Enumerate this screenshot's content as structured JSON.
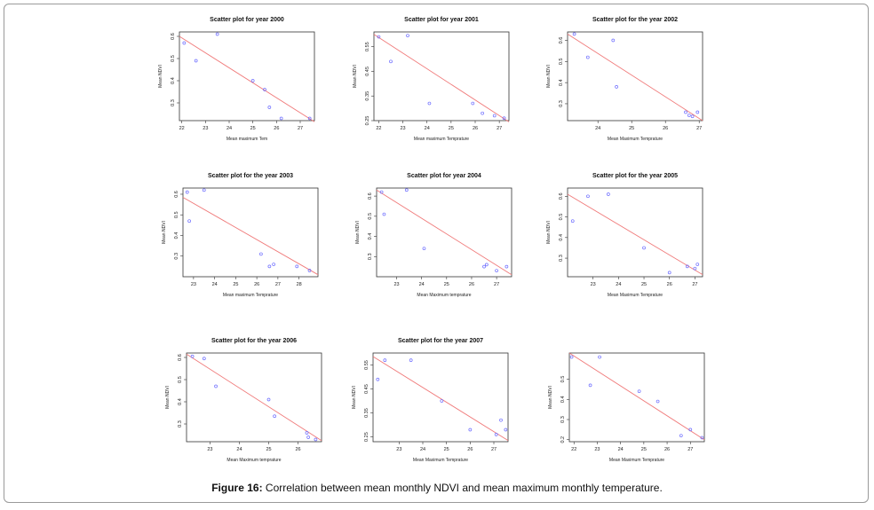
{
  "caption": {
    "label": "Figure 16:",
    "text": " Correlation between mean monthly NDVI and mean maximum monthly temperature."
  },
  "colors": {
    "points": "#6b6bff",
    "fit_line": "#f07a7a",
    "axes": "#333333"
  },
  "chart_data": [
    {
      "type": "scatter",
      "title": "Scatter plot for year 2000",
      "xlabel": "Mean maximum Tem",
      "ylabel": "Mean NDVI",
      "xlim": [
        21.9,
        27.6
      ],
      "ylim": [
        0.22,
        0.62
      ],
      "xticks": [
        22,
        23,
        24,
        25,
        26,
        27
      ],
      "yticks": [
        0.3,
        0.4,
        0.5,
        0.6
      ],
      "x": [
        22.1,
        22.6,
        23.5,
        25.0,
        25.5,
        25.7,
        26.2,
        27.4
      ],
      "y": [
        0.57,
        0.49,
        0.61,
        0.4,
        0.36,
        0.28,
        0.23,
        0.23
      ],
      "fit": [
        [
          21.9,
          0.6
        ],
        [
          27.6,
          0.215
        ]
      ]
    },
    {
      "type": "scatter",
      "title": "Scatter plot for year 2001",
      "xlabel": "Mean maximum Temprature",
      "ylabel": "Mean NDVI",
      "xlim": [
        21.8,
        27.4
      ],
      "ylim": [
        0.25,
        0.61
      ],
      "xticks": [
        22,
        23,
        24,
        25,
        26,
        27
      ],
      "yticks": [
        0.25,
        0.35,
        0.45,
        0.55
      ],
      "x": [
        22.0,
        22.5,
        23.2,
        24.1,
        25.9,
        26.3,
        26.8,
        27.2
      ],
      "y": [
        0.59,
        0.49,
        0.595,
        0.32,
        0.32,
        0.28,
        0.27,
        0.26
      ],
      "fit": [
        [
          21.8,
          0.6
        ],
        [
          27.4,
          0.245
        ]
      ]
    },
    {
      "type": "scatter",
      "title": "Scatter plot for the year 2002",
      "xlabel": "Mean Maximum Temprature",
      "ylabel": "Mean NDVI",
      "xlim": [
        23.1,
        27.1
      ],
      "ylim": [
        0.22,
        0.64
      ],
      "xticks": [
        24,
        25,
        26,
        27
      ],
      "yticks": [
        0.3,
        0.4,
        0.5,
        0.6
      ],
      "x": [
        23.3,
        23.7,
        24.45,
        24.55,
        26.6,
        26.7,
        26.8,
        26.95
      ],
      "y": [
        0.63,
        0.52,
        0.6,
        0.38,
        0.26,
        0.245,
        0.24,
        0.26
      ],
      "fit": [
        [
          23.1,
          0.63
        ],
        [
          27.1,
          0.22
        ]
      ]
    },
    {
      "type": "scatter",
      "title": "Scatter plot for the year 2003",
      "xlabel": "Mean maximum Temprature",
      "ylabel": "Mean NDVI",
      "xlim": [
        22.5,
        28.9
      ],
      "ylim": [
        0.2,
        0.63
      ],
      "xticks": [
        23,
        24,
        25,
        26,
        27,
        28
      ],
      "yticks": [
        0.3,
        0.4,
        0.5,
        0.6
      ],
      "x": [
        22.7,
        22.8,
        23.5,
        26.2,
        26.6,
        26.8,
        27.9,
        28.5
      ],
      "y": [
        0.61,
        0.47,
        0.62,
        0.31,
        0.25,
        0.26,
        0.25,
        0.23
      ],
      "fit": [
        [
          22.5,
          0.585
        ],
        [
          28.9,
          0.21
        ]
      ]
    },
    {
      "type": "scatter",
      "title": "Scatter plot for year 2004",
      "xlabel": "Mean Maximum temprature",
      "ylabel": "Mean NDVI",
      "xlim": [
        22.2,
        27.6
      ],
      "ylim": [
        0.2,
        0.64
      ],
      "xticks": [
        23,
        24,
        25,
        26,
        27
      ],
      "yticks": [
        0.3,
        0.4,
        0.5,
        0.6
      ],
      "x": [
        22.4,
        22.5,
        23.4,
        24.1,
        26.5,
        26.6,
        27.0,
        27.4
      ],
      "y": [
        0.62,
        0.51,
        0.63,
        0.34,
        0.25,
        0.26,
        0.23,
        0.25
      ],
      "fit": [
        [
          22.2,
          0.63
        ],
        [
          27.6,
          0.21
        ]
      ]
    },
    {
      "type": "scatter",
      "title": "Scatter plot for the year 2005",
      "xlabel": "Mean Maximum Temprature",
      "ylabel": "Mean NDVI",
      "xlim": [
        22.0,
        27.3
      ],
      "ylim": [
        0.21,
        0.64
      ],
      "xticks": [
        23,
        24,
        25,
        26,
        27
      ],
      "yticks": [
        0.3,
        0.4,
        0.5,
        0.6
      ],
      "x": [
        22.2,
        22.8,
        23.6,
        25.0,
        26.0,
        26.7,
        27.0,
        27.1
      ],
      "y": [
        0.48,
        0.6,
        0.61,
        0.35,
        0.23,
        0.26,
        0.25,
        0.27
      ],
      "fit": [
        [
          22.0,
          0.61
        ],
        [
          27.3,
          0.22
        ]
      ]
    },
    {
      "type": "scatter",
      "title": "Scatter plot for the year 2006",
      "xlabel": "Mean Maximum temprature",
      "ylabel": "Mean NDVI",
      "xlim": [
        22.2,
        26.8
      ],
      "ylim": [
        0.22,
        0.62
      ],
      "xticks": [
        23,
        24,
        25,
        26
      ],
      "yticks": [
        0.3,
        0.4,
        0.5,
        0.6
      ],
      "x": [
        22.4,
        22.8,
        23.2,
        25.0,
        25.2,
        26.3,
        26.35,
        26.6
      ],
      "y": [
        0.605,
        0.595,
        0.47,
        0.41,
        0.335,
        0.26,
        0.24,
        0.23
      ],
      "fit": [
        [
          22.2,
          0.615
        ],
        [
          26.8,
          0.225
        ]
      ]
    },
    {
      "type": "scatter",
      "title": "Scatter plot for the year 2007",
      "xlabel": "Mean Maximum Temprature",
      "ylabel": "Mean NDVI",
      "xlim": [
        21.9,
        27.6
      ],
      "ylim": [
        0.23,
        0.6
      ],
      "xticks": [
        23,
        24,
        25,
        26,
        27
      ],
      "yticks": [
        0.25,
        0.35,
        0.45,
        0.55
      ],
      "x": [
        22.1,
        22.4,
        23.5,
        24.8,
        26.0,
        27.1,
        27.3,
        27.5
      ],
      "y": [
        0.49,
        0.57,
        0.57,
        0.4,
        0.28,
        0.26,
        0.32,
        0.28
      ],
      "fit": [
        [
          21.9,
          0.585
        ],
        [
          27.6,
          0.235
        ]
      ]
    },
    {
      "type": "scatter",
      "title": "",
      "xlabel": "Mean Maximum Temprature",
      "ylabel": "Mean NDVI",
      "xlim": [
        21.8,
        27.6
      ],
      "ylim": [
        0.19,
        0.63
      ],
      "xticks": [
        22,
        23,
        24,
        25,
        26,
        27
      ],
      "yticks": [
        0.2,
        0.3,
        0.4,
        0.5
      ],
      "x": [
        21.9,
        22.7,
        23.1,
        24.8,
        25.6,
        26.6,
        27.0,
        27.5
      ],
      "y": [
        0.61,
        0.47,
        0.61,
        0.44,
        0.39,
        0.22,
        0.25,
        0.21
      ],
      "fit": [
        [
          21.8,
          0.63
        ],
        [
          27.6,
          0.2
        ]
      ]
    }
  ]
}
